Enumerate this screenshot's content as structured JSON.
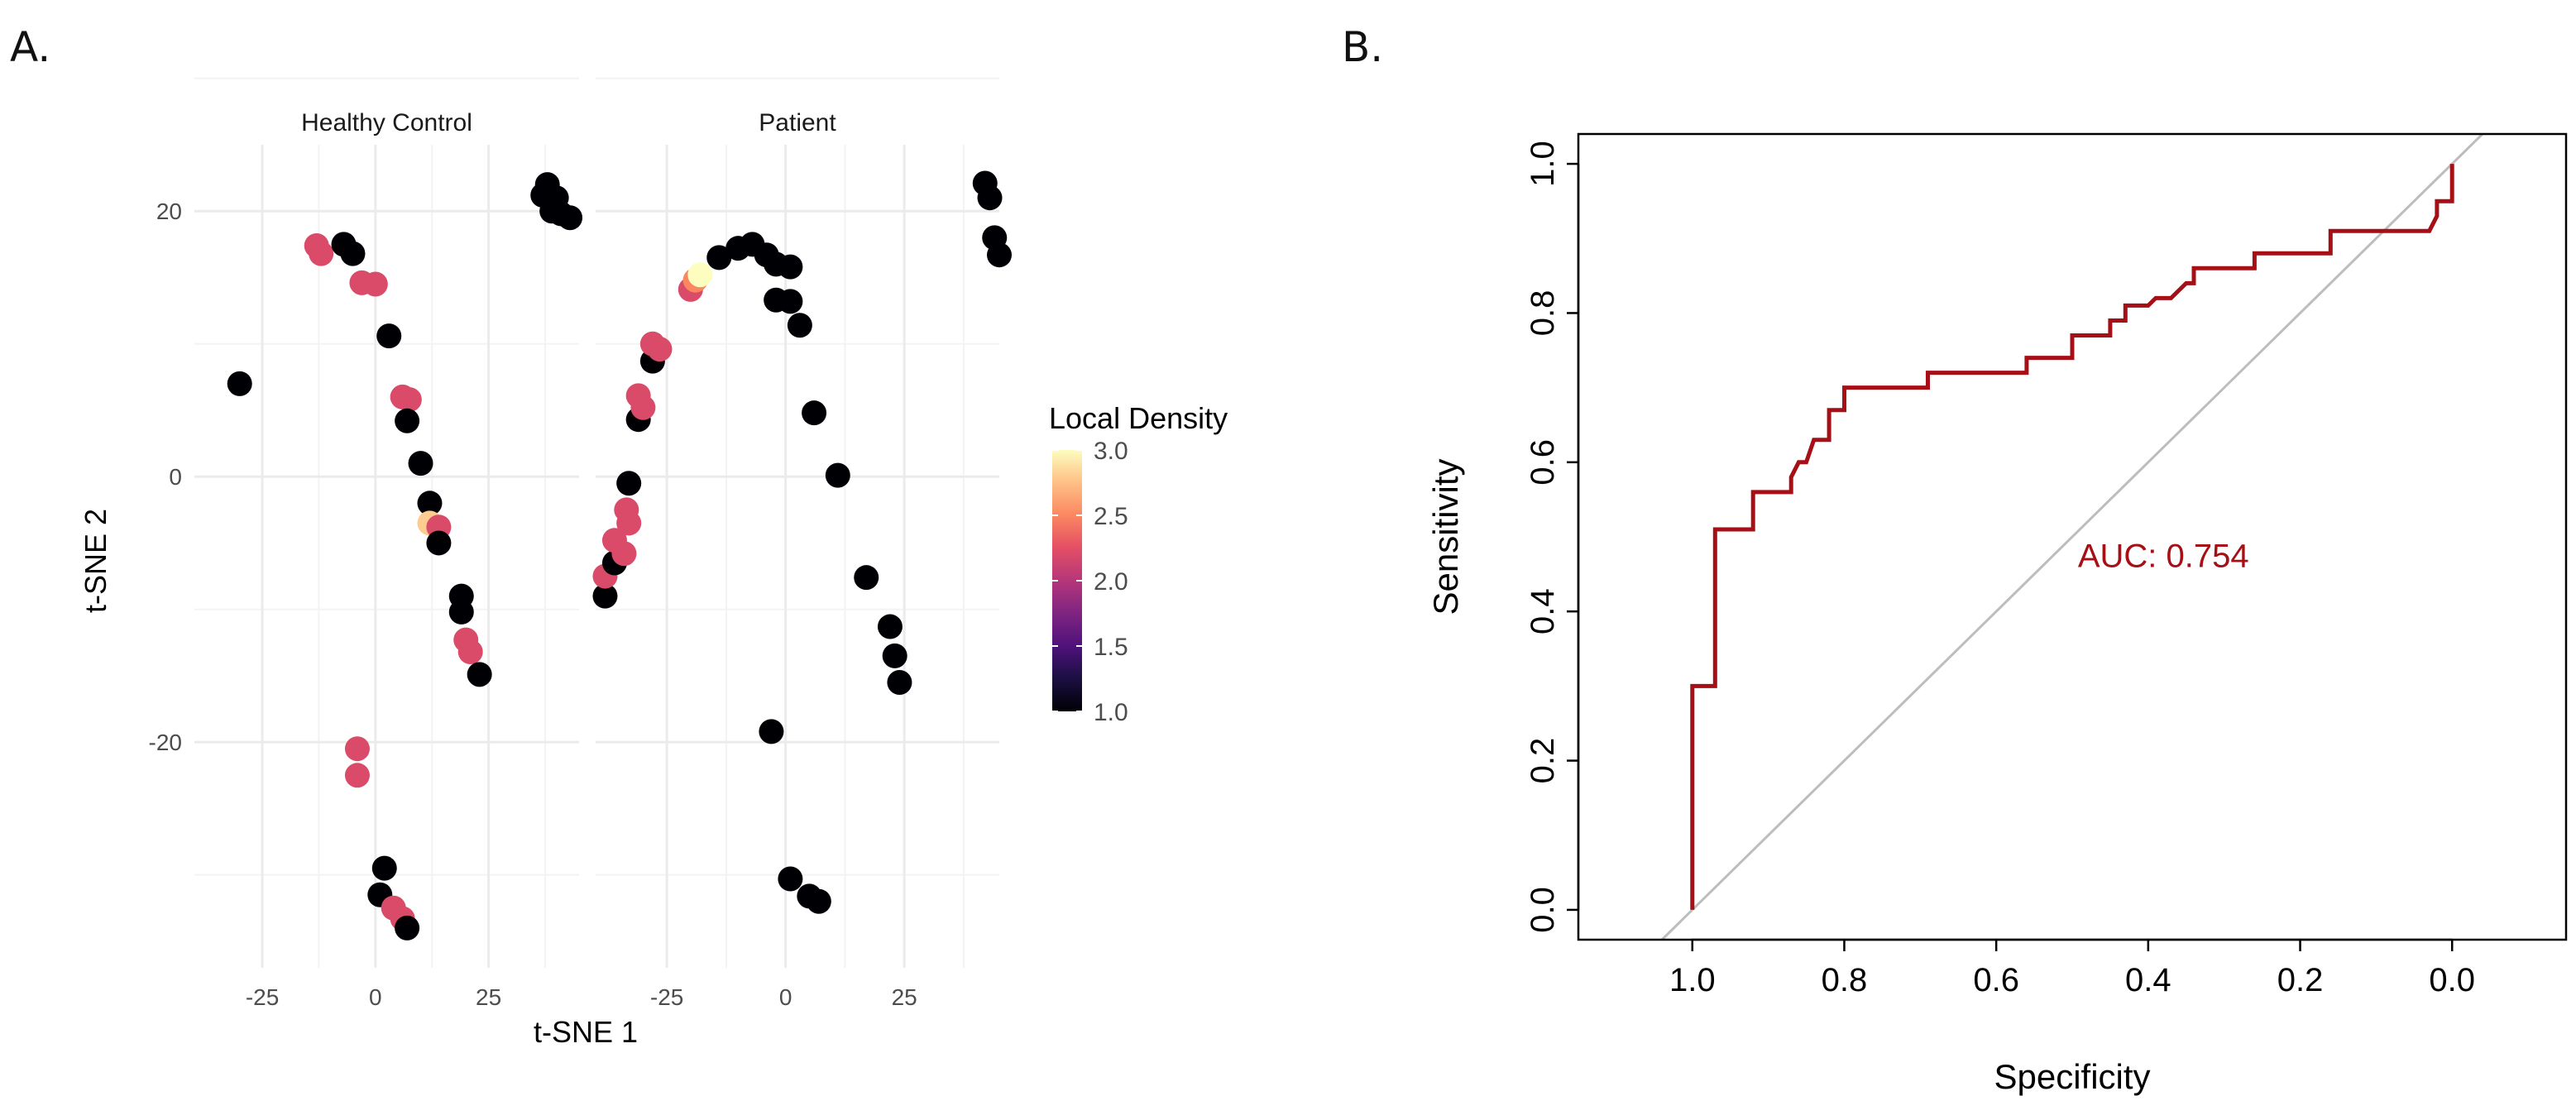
{
  "panels": {
    "a": {
      "letter": "A."
    },
    "b": {
      "letter": "B."
    }
  },
  "colors": {
    "density_low": "#000004",
    "density_mid": "#d6457a",
    "density_high": "#fcfdbf",
    "roc_line": "#a50f15",
    "diagonal": "#bdbdbd",
    "grid": "#ebebeb"
  },
  "chart_data": [
    {
      "type": "scatter",
      "panel": "A",
      "xlabel": "t-SNE 1",
      "ylabel": "t-SNE 2",
      "xlim": [
        -40,
        45
      ],
      "ylim": [
        -37,
        25
      ],
      "x_ticks": [
        -25,
        0,
        25
      ],
      "x_tick_labels": [
        "-25",
        "0",
        "25"
      ],
      "y_ticks": [
        20,
        0,
        -20
      ],
      "y_tick_labels": [
        "20",
        "0",
        "-20"
      ],
      "legend": {
        "title": "Local Density",
        "ticks": [
          3.0,
          2.5,
          2.0,
          1.5,
          1.0
        ],
        "tick_labels": [
          "3.0",
          "2.5",
          "2.0",
          "1.5",
          "1.0"
        ],
        "range": [
          1.0,
          3.0
        ],
        "placement": "right"
      },
      "facets": [
        {
          "name": "Healthy Control",
          "points": [
            {
              "x": -30,
              "y": 7,
              "d": 1
            },
            {
              "x": -13,
              "y": 17.4,
              "d": 2.2
            },
            {
              "x": -12,
              "y": 16.8,
              "d": 2.2
            },
            {
              "x": -7,
              "y": 17.5,
              "d": 1
            },
            {
              "x": -5,
              "y": 16.8,
              "d": 1
            },
            {
              "x": -3,
              "y": 14.6,
              "d": 2.2
            },
            {
              "x": 0,
              "y": 14.5,
              "d": 2.2
            },
            {
              "x": 3,
              "y": 10.6,
              "d": 1
            },
            {
              "x": 6,
              "y": 6,
              "d": 2.2
            },
            {
              "x": 7.5,
              "y": 5.8,
              "d": 2.2
            },
            {
              "x": 7,
              "y": 4.2,
              "d": 1
            },
            {
              "x": 10,
              "y": 1,
              "d": 1
            },
            {
              "x": 12,
              "y": -2,
              "d": 1
            },
            {
              "x": 12,
              "y": -3.5,
              "d": 2.8
            },
            {
              "x": 14,
              "y": -3.8,
              "d": 2.2
            },
            {
              "x": 14,
              "y": -5,
              "d": 1
            },
            {
              "x": 19,
              "y": -9,
              "d": 1
            },
            {
              "x": 19,
              "y": -10.2,
              "d": 1
            },
            {
              "x": 20,
              "y": -12.3,
              "d": 2.2
            },
            {
              "x": 21,
              "y": -13.2,
              "d": 2.2
            },
            {
              "x": 23,
              "y": -14.9,
              "d": 1
            },
            {
              "x": -4,
              "y": -20.5,
              "d": 2.2
            },
            {
              "x": -4,
              "y": -22.5,
              "d": 2.2
            },
            {
              "x": 2,
              "y": -29.5,
              "d": 1
            },
            {
              "x": 1,
              "y": -31.5,
              "d": 1
            },
            {
              "x": 4,
              "y": -32.5,
              "d": 2.2
            },
            {
              "x": 6,
              "y": -33.3,
              "d": 2.2
            },
            {
              "x": 7,
              "y": -34,
              "d": 1
            },
            {
              "x": 38,
              "y": 22,
              "d": 1
            },
            {
              "x": 37,
              "y": 21.2,
              "d": 1
            },
            {
              "x": 40,
              "y": 21,
              "d": 1
            },
            {
              "x": 39,
              "y": 20,
              "d": 1
            },
            {
              "x": 41,
              "y": 19.8,
              "d": 1
            },
            {
              "x": 43,
              "y": 19.5,
              "d": 1
            }
          ]
        },
        {
          "name": "Patient",
          "points": [
            {
              "x": -38,
              "y": -9,
              "d": 1
            },
            {
              "x": -38,
              "y": -7.5,
              "d": 2.2
            },
            {
              "x": -36,
              "y": -6.5,
              "d": 1
            },
            {
              "x": -36,
              "y": -4.8,
              "d": 2.2
            },
            {
              "x": -34,
              "y": -5.8,
              "d": 2.2
            },
            {
              "x": -33,
              "y": -3.5,
              "d": 2.2
            },
            {
              "x": -33.5,
              "y": -2.5,
              "d": 2.2
            },
            {
              "x": -33,
              "y": -0.5,
              "d": 1
            },
            {
              "x": -31,
              "y": 4.3,
              "d": 1
            },
            {
              "x": -31,
              "y": 6.1,
              "d": 2.2
            },
            {
              "x": -30,
              "y": 5.2,
              "d": 2.2
            },
            {
              "x": -28,
              "y": 8.7,
              "d": 1
            },
            {
              "x": -28,
              "y": 10,
              "d": 2.2
            },
            {
              "x": -26.5,
              "y": 9.6,
              "d": 2.2
            },
            {
              "x": -20,
              "y": 14.1,
              "d": 2.2
            },
            {
              "x": -19,
              "y": 14.8,
              "d": 2.5
            },
            {
              "x": -18,
              "y": 15.2,
              "d": 3
            },
            {
              "x": -14,
              "y": 16.5,
              "d": 1
            },
            {
              "x": -10,
              "y": 17.2,
              "d": 1
            },
            {
              "x": -7,
              "y": 17.5,
              "d": 1
            },
            {
              "x": -4,
              "y": 16.7,
              "d": 1
            },
            {
              "x": -2,
              "y": 16,
              "d": 1
            },
            {
              "x": 1,
              "y": 15.8,
              "d": 1
            },
            {
              "x": -2,
              "y": 13.3,
              "d": 1
            },
            {
              "x": 1,
              "y": 13.2,
              "d": 1
            },
            {
              "x": 3,
              "y": 11.4,
              "d": 1
            },
            {
              "x": 6,
              "y": 4.8,
              "d": 1
            },
            {
              "x": 11,
              "y": 0.1,
              "d": 1
            },
            {
              "x": 17,
              "y": -7.6,
              "d": 1
            },
            {
              "x": 22,
              "y": -11.3,
              "d": 1
            },
            {
              "x": 23,
              "y": -13.5,
              "d": 1
            },
            {
              "x": 24,
              "y": -15.5,
              "d": 1
            },
            {
              "x": -3,
              "y": -19.2,
              "d": 1
            },
            {
              "x": 1,
              "y": -30.3,
              "d": 1
            },
            {
              "x": 5,
              "y": -31.6,
              "d": 1
            },
            {
              "x": 7,
              "y": -32,
              "d": 1
            },
            {
              "x": 42,
              "y": 22.1,
              "d": 1
            },
            {
              "x": 43,
              "y": 21,
              "d": 1
            },
            {
              "x": 44,
              "y": 18,
              "d": 1
            },
            {
              "x": 45,
              "y": 16.7,
              "d": 1
            }
          ]
        }
      ]
    },
    {
      "type": "line",
      "panel": "B",
      "xlabel": "Specificity",
      "ylabel": "Sensitivity",
      "xlim": [
        1.15,
        -0.15
      ],
      "ylim": [
        -0.04,
        1.04
      ],
      "x_ticks": [
        1.0,
        0.8,
        0.6,
        0.4,
        0.2,
        0.0
      ],
      "x_tick_labels": [
        "1.0",
        "0.8",
        "0.6",
        "0.4",
        "0.2",
        "0.0"
      ],
      "y_ticks": [
        0.0,
        0.2,
        0.4,
        0.6,
        0.8,
        1.0
      ],
      "y_tick_labels": [
        "0.0",
        "0.2",
        "0.4",
        "0.6",
        "0.8",
        "1.0"
      ],
      "annotation": "AUC: 0.754",
      "auc": 0.754,
      "diagonal": [
        [
          1.04,
          -0.04
        ],
        [
          -0.04,
          1.04
        ]
      ],
      "roc_points": [
        [
          1.0,
          0.0
        ],
        [
          1.0,
          0.3
        ],
        [
          0.97,
          0.3
        ],
        [
          0.97,
          0.51
        ],
        [
          0.92,
          0.51
        ],
        [
          0.92,
          0.56
        ],
        [
          0.87,
          0.56
        ],
        [
          0.87,
          0.58
        ],
        [
          0.86,
          0.6
        ],
        [
          0.85,
          0.6
        ],
        [
          0.84,
          0.63
        ],
        [
          0.82,
          0.63
        ],
        [
          0.82,
          0.67
        ],
        [
          0.8,
          0.67
        ],
        [
          0.8,
          0.7
        ],
        [
          0.69,
          0.7
        ],
        [
          0.69,
          0.72
        ],
        [
          0.56,
          0.72
        ],
        [
          0.56,
          0.74
        ],
        [
          0.5,
          0.74
        ],
        [
          0.5,
          0.77
        ],
        [
          0.45,
          0.77
        ],
        [
          0.45,
          0.79
        ],
        [
          0.43,
          0.79
        ],
        [
          0.43,
          0.81
        ],
        [
          0.4,
          0.81
        ],
        [
          0.39,
          0.82
        ],
        [
          0.37,
          0.82
        ],
        [
          0.36,
          0.83
        ],
        [
          0.35,
          0.84
        ],
        [
          0.34,
          0.84
        ],
        [
          0.34,
          0.86
        ],
        [
          0.26,
          0.86
        ],
        [
          0.26,
          0.88
        ],
        [
          0.16,
          0.88
        ],
        [
          0.16,
          0.91
        ],
        [
          0.03,
          0.91
        ],
        [
          0.02,
          0.93
        ],
        [
          0.02,
          0.95
        ],
        [
          0.0,
          0.95
        ],
        [
          0.0,
          1.0
        ]
      ]
    }
  ]
}
